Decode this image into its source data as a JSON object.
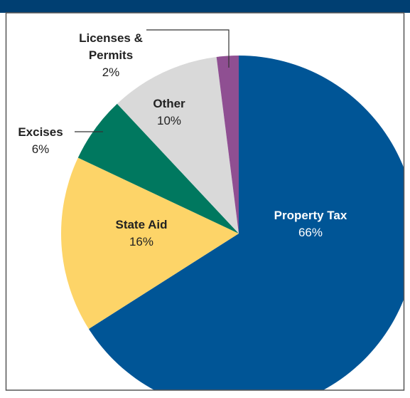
{
  "chart_data": {
    "type": "pie",
    "categories": [
      "Property Tax",
      "State Aid",
      "Excises",
      "Other",
      "Licenses & Permits"
    ],
    "values": [
      66,
      16,
      6,
      10,
      2
    ],
    "value_labels": [
      "66%",
      "16%",
      "6%",
      "10%",
      "2%"
    ],
    "colors": [
      "#005596",
      "#fdd468",
      "#00785f",
      "#d9d9d9",
      "#8f4f92"
    ],
    "label_colors": [
      "#ffffff",
      "#222222",
      "#222222",
      "#222222",
      "#222222"
    ]
  }
}
